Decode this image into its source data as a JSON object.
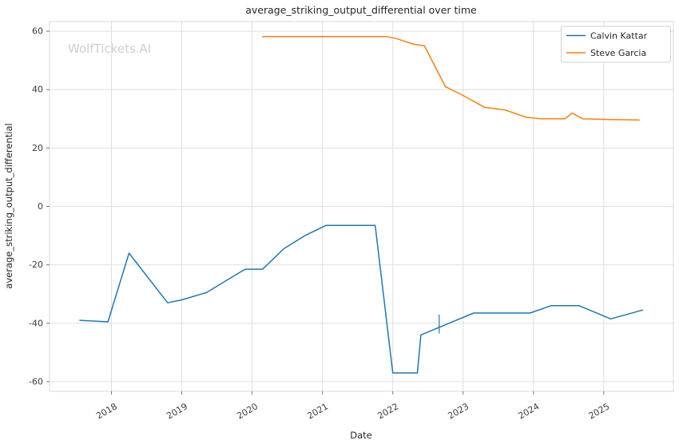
{
  "chart_data": {
    "type": "line",
    "title": "average_striking_output_differential over time",
    "xlabel": "Date",
    "ylabel": "average_striking_output_differential",
    "watermark": "WolfTickets.AI",
    "grid": true,
    "legend_position": "upper right",
    "xlim": [
      2017.12,
      2025.99
    ],
    "ylim": [
      -63.3,
      63.3
    ],
    "xticks": [
      2018,
      2019,
      2020,
      2021,
      2022,
      2023,
      2024,
      2025
    ],
    "xtick_labels": [
      "2018",
      "2019",
      "2020",
      "2021",
      "2022",
      "2023",
      "2024",
      "2025"
    ],
    "yticks": [
      -60,
      -40,
      -20,
      0,
      20,
      40,
      60
    ],
    "ytick_labels": [
      "-60",
      "-40",
      "-20",
      "0",
      "20",
      "40",
      "60"
    ],
    "series": [
      {
        "name": "Calvin Kattar",
        "color": "#1f77b4",
        "x": [
          2017.55,
          2017.95,
          2018.25,
          2018.8,
          2019.0,
          2019.35,
          2019.9,
          2020.15,
          2020.45,
          2020.75,
          2021.05,
          2021.75,
          2022.0,
          2022.35,
          2022.4,
          2022.7,
          2023.15,
          2023.55,
          2023.95,
          2024.25,
          2024.65,
          2025.1,
          2025.55
        ],
        "y": [
          -39,
          -39.5,
          -16,
          -33,
          -32,
          -29.5,
          -21.5,
          -21.5,
          -14.5,
          -10,
          -6.5,
          -6.5,
          -57,
          -57,
          -44,
          -41,
          -36.5,
          -36.5,
          -36.5,
          -34,
          -34,
          -38.5,
          -35.5
        ]
      },
      {
        "name": "Steve Garcia",
        "color": "#ff7f0e",
        "x": [
          2020.15,
          2021.9,
          2022.05,
          2022.3,
          2022.45,
          2022.75,
          2023.0,
          2023.3,
          2023.6,
          2023.9,
          2024.1,
          2024.45,
          2024.55,
          2024.7,
          2025.0,
          2025.5
        ],
        "y": [
          58.2,
          58.2,
          57.5,
          55.5,
          55,
          41,
          38,
          34,
          33,
          30.5,
          30,
          30,
          32,
          30,
          29.8,
          29.6
        ]
      }
    ],
    "annotations": [
      {
        "type": "vline_tick",
        "x": 2022.66,
        "y1": -43.5,
        "y2": -37,
        "color": "#1f77b4"
      }
    ]
  }
}
